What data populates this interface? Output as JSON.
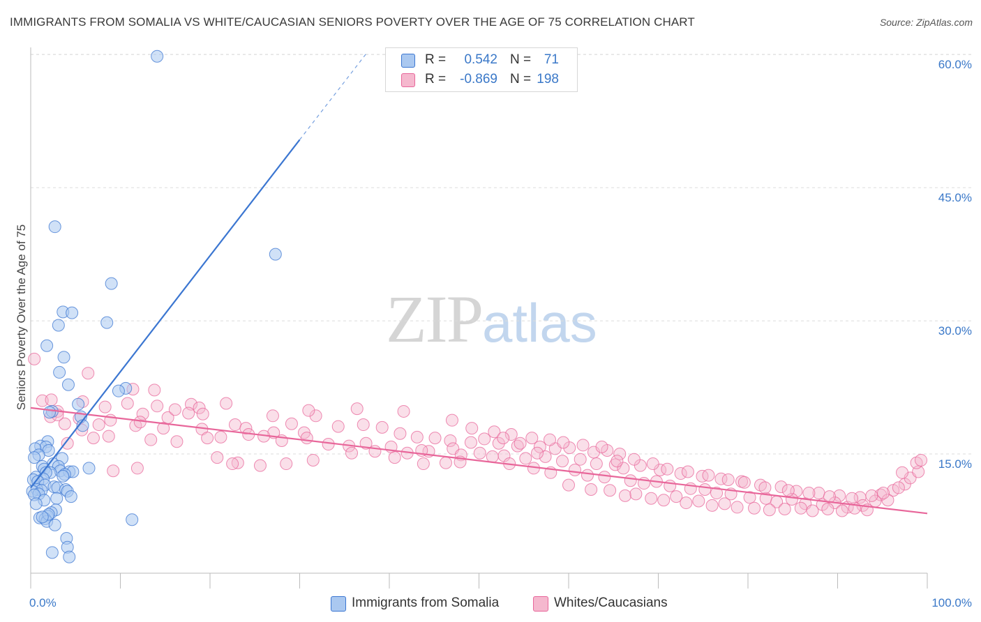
{
  "title": "IMMIGRANTS FROM SOMALIA VS WHITE/CAUCASIAN SENIORS POVERTY OVER THE AGE OF 75 CORRELATION CHART",
  "source": "Source: ZipAtlas.com",
  "watermark": {
    "part1": "ZIP",
    "part2": "atlas"
  },
  "colors": {
    "blue": "#3b76d1",
    "blue_fill": "#aac8f0",
    "pink": "#e8669a",
    "pink_fill": "#f5b8ce",
    "tick_label": "#3a78c8"
  },
  "stats": [
    {
      "r_label": "R =",
      "r_value": "0.542",
      "n_label": "N =",
      "n_value": "71"
    },
    {
      "r_label": "R =",
      "r_value": "-0.869",
      "n_label": "N =",
      "n_value": "198"
    }
  ],
  "legend": [
    {
      "label": "Immigrants from Somalia"
    },
    {
      "label": "Whites/Caucasians"
    }
  ],
  "chart_data": {
    "type": "scatter",
    "title": "IMMIGRANTS FROM SOMALIA VS WHITE/CAUCASIAN SENIORS POVERTY OVER THE AGE OF 75 CORRELATION CHART",
    "xlabel": "",
    "ylabel": "Seniors Poverty Over the Age of 75",
    "xlim": [
      0,
      100
    ],
    "ylim": [
      0,
      62
    ],
    "x_tick_labels": [
      "0.0%",
      "100.0%"
    ],
    "y_ticks": [
      15,
      30,
      45,
      60
    ],
    "y_tick_labels": [
      "15.0%",
      "30.0%",
      "45.0%",
      "60.0%"
    ],
    "grid": true,
    "legend_position": "bottom",
    "series": [
      {
        "name": "Immigrants from Somalia",
        "color": "#3b76d1",
        "trend": {
          "x0": 0,
          "y0": 11.2,
          "x1": 30,
          "y1": 50.4,
          "dash_to_x": 37.5,
          "dash_to_y": 60.2
        },
        "points": [
          [
            14.1,
            59.8
          ],
          [
            2.7,
            40.6
          ],
          [
            27.3,
            37.5
          ],
          [
            9.0,
            34.2
          ],
          [
            3.6,
            31.0
          ],
          [
            4.6,
            30.9
          ],
          [
            8.5,
            29.8
          ],
          [
            3.1,
            29.5
          ],
          [
            1.8,
            27.2
          ],
          [
            3.7,
            25.9
          ],
          [
            3.2,
            24.2
          ],
          [
            4.2,
            22.8
          ],
          [
            10.6,
            22.4
          ],
          [
            9.8,
            22.1
          ],
          [
            5.3,
            20.6
          ],
          [
            2.4,
            19.8
          ],
          [
            2.1,
            19.7
          ],
          [
            5.6,
            19.2
          ],
          [
            5.8,
            18.2
          ],
          [
            1.9,
            16.4
          ],
          [
            1.1,
            15.9
          ],
          [
            1.7,
            15.8
          ],
          [
            0.5,
            15.6
          ],
          [
            2.0,
            15.4
          ],
          [
            0.9,
            14.9
          ],
          [
            0.4,
            14.6
          ],
          [
            3.5,
            14.5
          ],
          [
            2.5,
            13.9
          ],
          [
            1.3,
            13.6
          ],
          [
            3.1,
            13.6
          ],
          [
            6.5,
            13.4
          ],
          [
            1.5,
            13.3
          ],
          [
            3.3,
            13.1
          ],
          [
            4.3,
            13.0
          ],
          [
            2.2,
            12.9
          ],
          [
            1.7,
            12.9
          ],
          [
            4.7,
            13.0
          ],
          [
            3.8,
            12.7
          ],
          [
            3.6,
            12.5
          ],
          [
            0.6,
            12.4
          ],
          [
            1.4,
            12.2
          ],
          [
            0.3,
            12.1
          ],
          [
            0.8,
            11.9
          ],
          [
            1.6,
            11.5
          ],
          [
            2.6,
            11.3
          ],
          [
            3.0,
            11.2
          ],
          [
            3.9,
            11.0
          ],
          [
            0.7,
            11.0
          ],
          [
            1.2,
            10.9
          ],
          [
            0.2,
            10.8
          ],
          [
            4.1,
            10.8
          ],
          [
            0.9,
            10.5
          ],
          [
            0.4,
            10.4
          ],
          [
            4.5,
            10.2
          ],
          [
            2.9,
            10.0
          ],
          [
            1.5,
            9.8
          ],
          [
            0.6,
            9.4
          ],
          [
            2.8,
            8.7
          ],
          [
            2.3,
            8.4
          ],
          [
            1.9,
            8.0
          ],
          [
            1.0,
            7.8
          ],
          [
            1.6,
            7.7
          ],
          [
            11.3,
            7.6
          ],
          [
            1.8,
            7.4
          ],
          [
            2.7,
            7.0
          ],
          [
            4.0,
            5.5
          ],
          [
            4.1,
            4.5
          ],
          [
            2.4,
            3.9
          ],
          [
            4.3,
            3.4
          ],
          [
            2.0,
            8.2
          ],
          [
            1.3,
            7.9
          ]
        ]
      },
      {
        "name": "Whites/Caucasians",
        "color": "#e8669a",
        "trend": {
          "x0": 0,
          "y0": 20.2,
          "x1": 100,
          "y1": 8.3
        },
        "points": [
          [
            0.4,
            25.7
          ],
          [
            6.4,
            24.1
          ],
          [
            13.8,
            22.2
          ],
          [
            11.4,
            22.3
          ],
          [
            1.3,
            21.0
          ],
          [
            2.3,
            21.1
          ],
          [
            8.3,
            20.3
          ],
          [
            10.8,
            20.7
          ],
          [
            14.1,
            20.4
          ],
          [
            17.9,
            20.6
          ],
          [
            18.8,
            20.2
          ],
          [
            21.8,
            20.7
          ],
          [
            5.8,
            20.9
          ],
          [
            3.0,
            19.8
          ],
          [
            12.5,
            19.5
          ],
          [
            15.3,
            19.1
          ],
          [
            17.6,
            19.6
          ],
          [
            19.2,
            19.5
          ],
          [
            2.2,
            19.2
          ],
          [
            5.4,
            19.0
          ],
          [
            8.9,
            18.8
          ],
          [
            3.8,
            18.4
          ],
          [
            7.6,
            18.3
          ],
          [
            11.7,
            18.2
          ],
          [
            14.8,
            17.9
          ],
          [
            19.1,
            17.8
          ],
          [
            22.8,
            18.3
          ],
          [
            24.0,
            17.9
          ],
          [
            29.1,
            18.4
          ],
          [
            30.5,
            17.4
          ],
          [
            31.8,
            19.3
          ],
          [
            34.3,
            18.1
          ],
          [
            37.1,
            18.3
          ],
          [
            39.2,
            18.0
          ],
          [
            41.2,
            17.3
          ],
          [
            43.1,
            16.9
          ],
          [
            45.1,
            16.8
          ],
          [
            46.8,
            16.5
          ],
          [
            49.1,
            16.3
          ],
          [
            50.6,
            16.7
          ],
          [
            52.2,
            16.2
          ],
          [
            54.3,
            15.9
          ],
          [
            56.8,
            15.8
          ],
          [
            58.5,
            15.6
          ],
          [
            60.1,
            15.7
          ],
          [
            62.8,
            15.2
          ],
          [
            64.3,
            15.4
          ],
          [
            65.7,
            15.0
          ],
          [
            5.7,
            17.7
          ],
          [
            8.7,
            17.0
          ],
          [
            13.4,
            16.6
          ],
          [
            16.3,
            16.4
          ],
          [
            19.7,
            16.8
          ],
          [
            21.2,
            16.9
          ],
          [
            24.3,
            17.2
          ],
          [
            27.1,
            17.4
          ],
          [
            28.0,
            16.5
          ],
          [
            30.8,
            16.8
          ],
          [
            33.2,
            16.1
          ],
          [
            35.5,
            15.9
          ],
          [
            37.4,
            16.2
          ],
          [
            38.4,
            15.3
          ],
          [
            40.2,
            15.8
          ],
          [
            42.0,
            15.1
          ],
          [
            44.4,
            15.3
          ],
          [
            47.1,
            15.6
          ],
          [
            48.0,
            14.9
          ],
          [
            50.1,
            15.1
          ],
          [
            52.8,
            14.8
          ],
          [
            55.2,
            14.5
          ],
          [
            57.4,
            14.7
          ],
          [
            59.3,
            14.2
          ],
          [
            61.3,
            14.4
          ],
          [
            63.1,
            13.9
          ],
          [
            65.2,
            13.8
          ],
          [
            66.1,
            13.4
          ],
          [
            68.0,
            13.7
          ],
          [
            70.2,
            13.2
          ],
          [
            72.5,
            12.8
          ],
          [
            74.9,
            12.5
          ],
          [
            77.0,
            12.2
          ],
          [
            79.3,
            11.9
          ],
          [
            81.4,
            11.5
          ],
          [
            83.7,
            11.3
          ],
          [
            85.4,
            10.8
          ],
          [
            87.9,
            10.6
          ],
          [
            90.2,
            10.3
          ],
          [
            92.5,
            10.1
          ],
          [
            94.8,
            10.4
          ],
          [
            96.2,
            10.9
          ],
          [
            97.5,
            11.6
          ],
          [
            98.1,
            12.3
          ],
          [
            99.0,
            13.0
          ],
          [
            98.8,
            14.0
          ],
          [
            99.3,
            14.3
          ],
          [
            97.2,
            12.9
          ],
          [
            9.2,
            13.1
          ],
          [
            11.9,
            13.4
          ],
          [
            20.8,
            14.6
          ],
          [
            23.1,
            14.0
          ],
          [
            25.6,
            13.7
          ],
          [
            28.5,
            13.9
          ],
          [
            31.5,
            14.3
          ],
          [
            35.8,
            15.1
          ],
          [
            40.6,
            14.6
          ],
          [
            43.8,
            13.9
          ],
          [
            47.9,
            14.1
          ],
          [
            51.5,
            14.7
          ],
          [
            53.4,
            13.9
          ],
          [
            56.1,
            13.4
          ],
          [
            58.0,
            12.9
          ],
          [
            60.7,
            13.2
          ],
          [
            62.1,
            12.6
          ],
          [
            64.0,
            12.4
          ],
          [
            66.9,
            12.0
          ],
          [
            68.4,
            11.7
          ],
          [
            69.8,
            11.9
          ],
          [
            71.3,
            11.4
          ],
          [
            73.6,
            11.1
          ],
          [
            75.2,
            11.0
          ],
          [
            76.5,
            10.6
          ],
          [
            78.1,
            10.5
          ],
          [
            80.2,
            10.1
          ],
          [
            82.0,
            10.0
          ],
          [
            83.2,
            9.6
          ],
          [
            84.9,
            9.9
          ],
          [
            86.4,
            9.4
          ],
          [
            88.3,
            9.3
          ],
          [
            89.7,
            9.5
          ],
          [
            91.1,
            9.0
          ],
          [
            92.8,
            9.2
          ],
          [
            94.2,
            9.7
          ],
          [
            95.6,
            9.8
          ],
          [
            60.0,
            11.5
          ],
          [
            62.5,
            11.0
          ],
          [
            64.6,
            10.9
          ],
          [
            66.3,
            10.3
          ],
          [
            67.5,
            10.5
          ],
          [
            69.2,
            10.0
          ],
          [
            70.6,
            9.8
          ],
          [
            72.0,
            10.2
          ],
          [
            73.1,
            9.5
          ],
          [
            74.5,
            9.7
          ],
          [
            76.0,
            9.2
          ],
          [
            77.4,
            9.4
          ],
          [
            78.8,
            9.0
          ],
          [
            80.7,
            8.9
          ],
          [
            82.4,
            8.7
          ],
          [
            84.1,
            8.8
          ],
          [
            85.9,
            8.9
          ],
          [
            87.2,
            8.6
          ],
          [
            88.9,
            8.8
          ],
          [
            90.5,
            8.6
          ],
          [
            91.9,
            8.9
          ],
          [
            93.3,
            8.7
          ],
          [
            47.0,
            18.8
          ],
          [
            49.2,
            17.9
          ],
          [
            51.7,
            17.5
          ],
          [
            53.6,
            17.2
          ],
          [
            55.9,
            16.8
          ],
          [
            57.9,
            16.6
          ],
          [
            59.4,
            16.3
          ],
          [
            61.6,
            16.0
          ],
          [
            63.7,
            15.8
          ],
          [
            65.4,
            14.2
          ],
          [
            67.3,
            14.4
          ],
          [
            69.4,
            13.9
          ],
          [
            71.0,
            13.3
          ],
          [
            73.3,
            13.0
          ],
          [
            75.6,
            12.6
          ],
          [
            77.8,
            12.1
          ],
          [
            79.6,
            11.8
          ],
          [
            81.9,
            11.2
          ],
          [
            84.5,
            10.9
          ],
          [
            86.8,
            10.6
          ],
          [
            89.1,
            10.2
          ],
          [
            91.6,
            10.0
          ],
          [
            93.8,
            10.3
          ],
          [
            95.1,
            10.6
          ],
          [
            96.8,
            11.2
          ],
          [
            36.4,
            20.1
          ],
          [
            41.6,
            19.8
          ],
          [
            27.0,
            19.3
          ],
          [
            31.0,
            19.9
          ],
          [
            26.0,
            17.0
          ],
          [
            16.1,
            20.0
          ],
          [
            7.0,
            16.8
          ],
          [
            4.1,
            16.2
          ],
          [
            3.0,
            19.4
          ],
          [
            12.2,
            18.6
          ],
          [
            22.5,
            13.9
          ],
          [
            43.6,
            15.4
          ],
          [
            52.7,
            16.8
          ],
          [
            46.3,
            14.0
          ],
          [
            54.6,
            16.2
          ],
          [
            56.5,
            15.1
          ]
        ]
      }
    ]
  }
}
